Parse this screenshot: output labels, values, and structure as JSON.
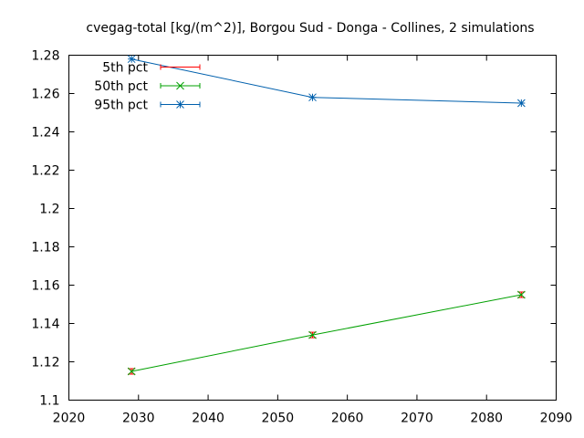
{
  "chart_data": {
    "type": "line",
    "title": "cvegag-total [kg/(m^2)], Borgou Sud - Donga - Collines, 2 simulations",
    "xlabel": "",
    "ylabel": "",
    "xlim": [
      2020,
      2090
    ],
    "ylim": [
      1.1,
      1.28
    ],
    "xticks": [
      "2020",
      "2030",
      "2040",
      "2050",
      "2060",
      "2070",
      "2080",
      "2090"
    ],
    "yticks": [
      "1.1",
      "1.12",
      "1.14",
      "1.16",
      "1.18",
      "1.2",
      "1.22",
      "1.24",
      "1.26",
      "1.28"
    ],
    "grid": false,
    "legend_position": "top-left",
    "x": [
      2029,
      2055,
      2085
    ],
    "series": [
      {
        "name": "5th pct",
        "color": "#ff0000",
        "marker": "errorbar",
        "values": [
          1.115,
          1.134,
          1.155
        ]
      },
      {
        "name": "50th pct",
        "color": "#00a000",
        "marker": "x",
        "values": [
          1.115,
          1.134,
          1.155
        ]
      },
      {
        "name": "95th pct",
        "color": "#0060ad",
        "marker": "star",
        "values": [
          1.278,
          1.258,
          1.255
        ]
      }
    ]
  }
}
